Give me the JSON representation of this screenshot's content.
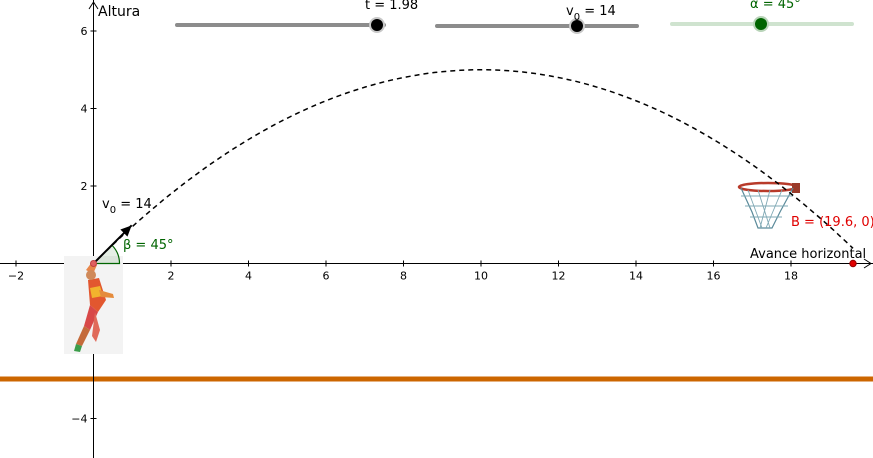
{
  "axes": {
    "y_label": "Altura",
    "x_label": "Avance horizontal",
    "x_ticks": [
      "−2",
      "2",
      "4",
      "6",
      "8",
      "10",
      "12",
      "14",
      "16",
      "18"
    ],
    "y_ticks": [
      "6",
      "4",
      "2",
      "−4"
    ],
    "x_range": [
      -2.3,
      20.2
    ],
    "y_range": [
      -5,
      6.3
    ]
  },
  "sliders": {
    "t": {
      "label": "t = 1.98",
      "value": 1.98
    },
    "v0": {
      "label_main": "v",
      "label_sub": "0",
      "label_rest": " = 14",
      "value": 14
    },
    "alpha": {
      "label": "α = 45°",
      "value": 45
    }
  },
  "vector": {
    "label_main": "v",
    "label_sub": "0",
    "label_rest": " = 14"
  },
  "angle": {
    "label": "β = 45°"
  },
  "point_b": {
    "label": "B = (19.6, 0)",
    "x": 19.6,
    "y": 0
  },
  "trajectory": {
    "v0": 14,
    "angle_deg": 45,
    "g": 9.8,
    "x_end": 19.6
  },
  "ground_level": -3,
  "colors": {
    "axis": "#000000",
    "trajectory": "#000000",
    "angle": "#006400",
    "point_b": "#e00000",
    "ground": "#cc6600",
    "slider_dark": "#8c8c8c",
    "slider_green": "#006400",
    "slider_green_track": "#cfe3cf"
  },
  "icons": {
    "player": "basketball-player-icon",
    "hoop": "basketball-hoop-icon"
  }
}
